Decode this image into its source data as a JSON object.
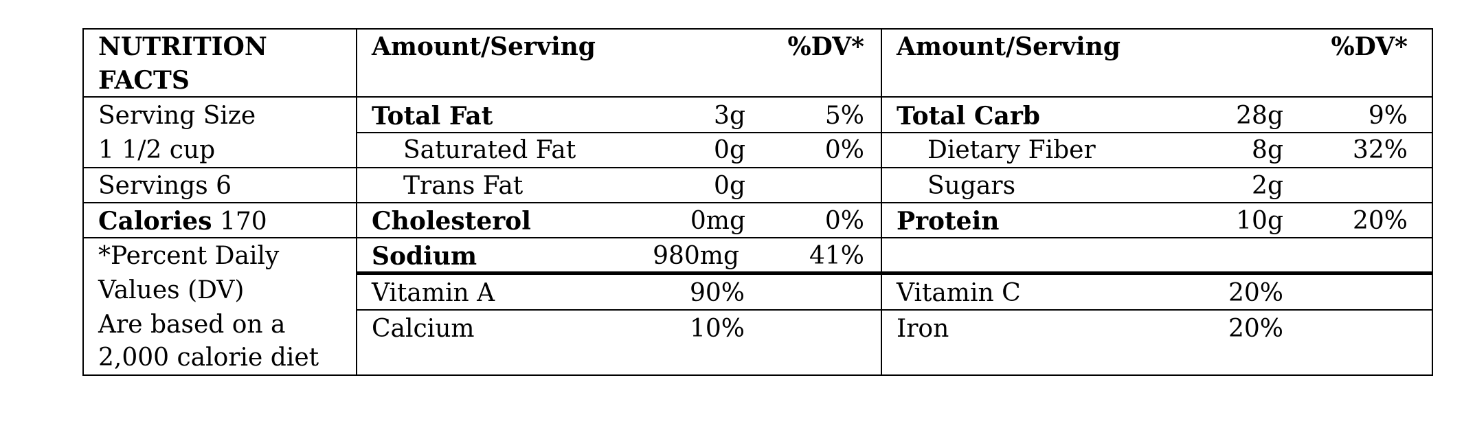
{
  "title_line1": "NUTRITION",
  "title_line2": "FACTS",
  "header": {
    "amount_serving_left": "Amount/Serving",
    "dv_left": "%DV*",
    "amount_serving_right": "Amount/Serving",
    "dv_right": "%DV*"
  },
  "serving_size_label": "Serving Size",
  "serving_size_value": "1 1/2 cup",
  "servings": "Servings 6",
  "calories_label": "Calories",
  "calories_value": "170",
  "footnote": [
    "*Percent Daily",
    "Values (DV)",
    "Are based on a",
    "2,000 calorie diet"
  ],
  "left_nutrients": [
    {
      "name": "Total Fat",
      "amount": "3g",
      "dv": "5%"
    },
    {
      "name": "Saturated Fat",
      "amount": "0g",
      "dv": "0%"
    },
    {
      "name": "Trans Fat",
      "amount": "0g",
      "dv": ""
    },
    {
      "name": "Cholesterol",
      "amount": "0mg",
      "dv": "0%"
    },
    {
      "name": "Sodium",
      "amount": "980mg",
      "dv": "41%"
    }
  ],
  "right_nutrients": [
    {
      "name": "Total Carb",
      "amount": "28g",
      "dv": "9%"
    },
    {
      "name": "Dietary Fiber",
      "amount": "8g",
      "dv": "32%"
    },
    {
      "name": "Sugars",
      "amount": "2g",
      "dv": ""
    },
    {
      "name": "Protein",
      "amount": "10g",
      "dv": "20%"
    }
  ],
  "vitamins_left": [
    {
      "name": "Vitamin A",
      "value": "90%"
    },
    {
      "name": "Calcium",
      "value": "10%"
    }
  ],
  "vitamins_right": [
    {
      "name": "Vitamin C",
      "value": "20%"
    },
    {
      "name": "Iron",
      "value": "20%"
    }
  ]
}
